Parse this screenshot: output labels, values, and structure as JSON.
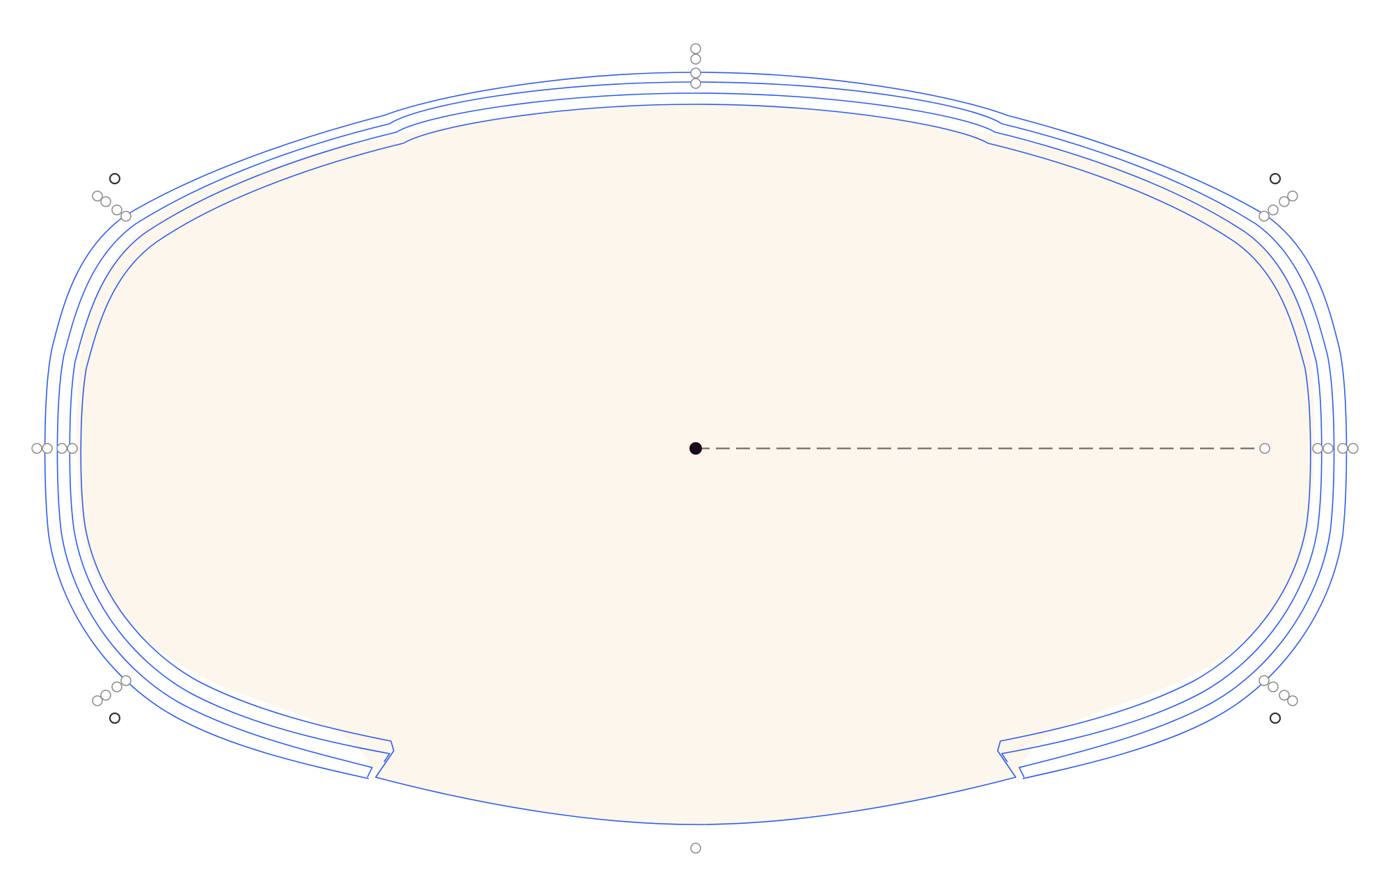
{
  "diagram": {
    "background_color": "#ffffff",
    "shape_fill_color": "#fdf6ec",
    "outline_color": "#2a5cf0",
    "handle_color": "#8a8a8a",
    "handle_dark_color": "#333333",
    "center_color": "#1a0a1a",
    "radius_line_color": "#7a7a7a",
    "outline_count": 4,
    "handle_groups": [
      "top",
      "top-left",
      "top-right",
      "left",
      "right",
      "bottom-left",
      "bottom-right",
      "bottom"
    ]
  }
}
